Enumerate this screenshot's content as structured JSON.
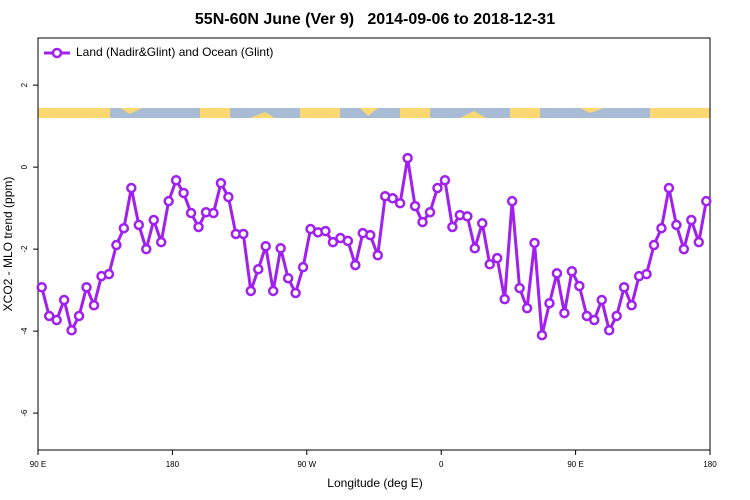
{
  "chart_data": {
    "type": "line",
    "title": "55N-60N June (Ver 9)   2014-09-06 to 2018-12-31",
    "x_label": "Longitude (deg E)",
    "y_label": "XCO2 - MLO trend (ppm)",
    "xlim": [
      90,
      540
    ],
    "ylim": [
      -6.9,
      3.15
    ],
    "xticks": [
      {
        "value": 90,
        "label": "90 E"
      },
      180,
      {
        "value": 270,
        "label": "90 W"
      },
      {
        "value": 360,
        "label": "0"
      },
      {
        "value": 450,
        "label": "90 E"
      },
      {
        "value": 540,
        "label": "180"
      }
    ],
    "yticks": [
      -6,
      -4,
      -2,
      0,
      2
    ],
    "legend": "top-left",
    "x": [
      92.5,
      97.5,
      102.5,
      107.5,
      112.5,
      117.5,
      122.5,
      127.5,
      132.5,
      137.5,
      142.5,
      147.5,
      152.5,
      157.5,
      162.5,
      167.5,
      172.5,
      177.5,
      182.5,
      187.5,
      192.5,
      197.5,
      202.5,
      207.5,
      212.5,
      217.5,
      222.5,
      227.5,
      232.5,
      237.5,
      242.5,
      247.5,
      252.5,
      257.5,
      262.5,
      267.5,
      272.5,
      277.5,
      282.5,
      287.5,
      292.5,
      297.5,
      302.5,
      307.5,
      312.5,
      317.5,
      322.5,
      327.5,
      332.5,
      337.5,
      342.5,
      347.5,
      352.5,
      357.5,
      362.5,
      367.5,
      372.5,
      377.5,
      382.5,
      387.5,
      392.5,
      397.5,
      402.5,
      407.5,
      412.5,
      417.5,
      422.5,
      427.5,
      432.5,
      437.5,
      442.5,
      447.5,
      452.5,
      457.5,
      462.5,
      467.5,
      472.5,
      477.5,
      482.5,
      487.5,
      492.5,
      497.5,
      502.5,
      507.5,
      512.5,
      517.5,
      522.5,
      527.5,
      532.5,
      537.5
    ],
    "series": [
      {
        "name": "Land (Nadir&Glint) and Ocean (Glint)",
        "color": "#a020f0",
        "values": [
          -2.93,
          -3.63,
          -3.73,
          -3.24,
          -3.98,
          -3.63,
          -2.93,
          -3.37,
          -2.66,
          -2.61,
          -1.9,
          -1.49,
          -0.51,
          -1.41,
          -2.0,
          -1.29,
          -1.83,
          -0.83,
          -0.32,
          -0.63,
          -1.12,
          -1.46,
          -1.1,
          -1.12,
          -0.39,
          -0.73,
          -1.63,
          -1.63,
          -3.02,
          -2.49,
          -1.93,
          -3.02,
          -1.98,
          -2.71,
          -3.07,
          -2.44,
          -1.51,
          -1.59,
          -1.56,
          -1.83,
          -1.73,
          -1.8,
          -2.39,
          -1.61,
          -1.66,
          -2.15,
          -0.71,
          -0.76,
          -0.88,
          0.22,
          -0.95,
          -1.34,
          -1.1,
          -0.51,
          -0.32,
          -1.46,
          -1.17,
          -1.2,
          -1.98,
          -1.37,
          -2.37,
          -2.22,
          -3.22,
          -0.83,
          -2.95,
          -3.44,
          -1.85,
          -4.1,
          -3.32,
          -2.59,
          -3.56,
          -2.54,
          -2.9,
          -3.63,
          -3.73,
          -3.24,
          -3.98,
          -3.63,
          -2.93,
          -3.37,
          -2.66,
          -2.61,
          -1.9,
          -1.49,
          -0.51,
          -1.41,
          -2.0,
          -1.29,
          -1.83,
          -0.83
        ]
      }
    ]
  }
}
